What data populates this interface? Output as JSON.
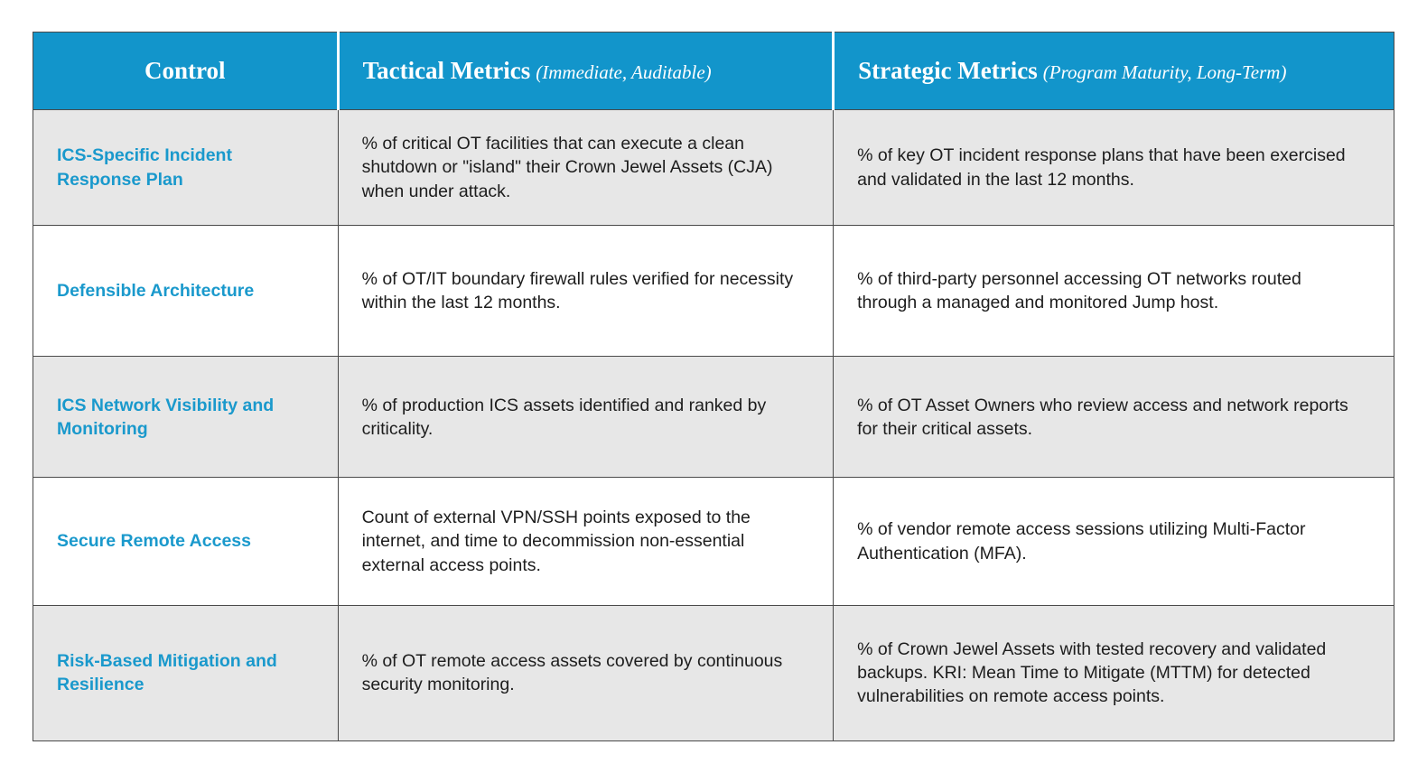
{
  "table": {
    "headers": [
      {
        "label": "Control",
        "sublabel": ""
      },
      {
        "label": "Tactical Metrics",
        "sublabel": "(Immediate, Auditable)"
      },
      {
        "label": "Strategic Metrics",
        "sublabel": "(Program Maturity, Long-Term)"
      }
    ],
    "rows": [
      {
        "control": "ICS-Specific Incident Response Plan",
        "tactical": "% of critical OT facilities that can execute a clean shutdown or \"island\" their Crown Jewel Assets (CJA) when under attack.",
        "strategic": "% of key OT incident response plans that have been exercised and validated in the last 12 months."
      },
      {
        "control": "Defensible Architecture",
        "tactical": "% of OT/IT boundary firewall rules verified for necessity within the last 12 months.",
        "strategic": "% of third-party personnel accessing OT networks routed through a managed and monitored Jump host."
      },
      {
        "control": "ICS Network Visibility and Monitoring",
        "tactical": "% of production ICS assets identified and ranked by criticality.",
        "strategic": "% of OT Asset Owners who review access and network reports for their critical assets."
      },
      {
        "control": "Secure Remote Access",
        "tactical": "Count of external VPN/SSH points exposed to the internet, and time to decommission non-essential external access points.",
        "strategic": "% of vendor remote access sessions utilizing Multi-Factor Authentication (MFA)."
      },
      {
        "control": "Risk-Based Mitigation and Resilience",
        "tactical": "% of OT remote access assets covered by continuous security monitoring.",
        "strategic": "% of Crown Jewel Assets with tested recovery and validated backups. KRI: Mean Time to Mitigate (MTTM) for detected vulnerabilities on remote access points."
      }
    ]
  },
  "colors": {
    "header_bg": "#1295cb",
    "row_alt_bg": "#e7e7e7",
    "accent_text": "#1a99cc",
    "border": "#4a4a4a"
  }
}
